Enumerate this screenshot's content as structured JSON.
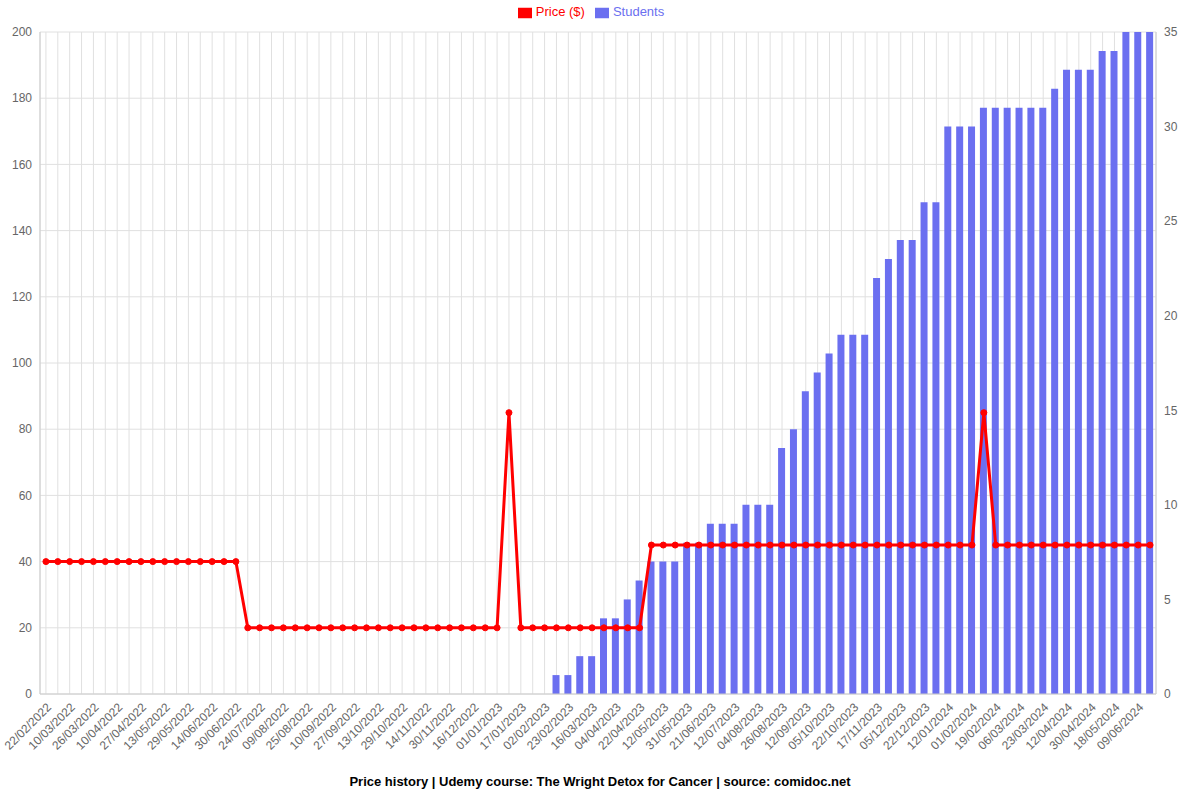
{
  "chart_data": {
    "type": "line",
    "title": "Price history | Udemy course: The Wright Detox for Cancer | source: comidoc.net",
    "categories": [
      "22/02/2022",
      null,
      "10/03/2022",
      null,
      "26/03/2022",
      null,
      "10/04/2022",
      null,
      "27/04/2022",
      null,
      "13/05/2022",
      null,
      "29/05/2022",
      null,
      "14/06/2022",
      null,
      "30/06/2022",
      null,
      "24/07/2022",
      null,
      "09/08/2022",
      null,
      "25/08/2022",
      null,
      "10/09/2022",
      null,
      "27/09/2022",
      null,
      "13/10/2022",
      null,
      "29/10/2022",
      null,
      "14/11/2022",
      null,
      "30/11/2022",
      null,
      "16/12/2022",
      null,
      "01/01/2023",
      null,
      "17/01/2023",
      null,
      "02/02/2023",
      null,
      "23/02/2023",
      null,
      "16/03/2023",
      null,
      "04/04/2023",
      null,
      "22/04/2023",
      null,
      "12/05/2023",
      null,
      "31/05/2023",
      null,
      "21/06/2023",
      null,
      "12/07/2023",
      null,
      "04/08/2023",
      null,
      "26/08/2023",
      null,
      "12/09/2023",
      null,
      "05/10/2023",
      null,
      "22/10/2023",
      null,
      "17/11/2023",
      null,
      "05/12/2023",
      null,
      "22/12/2023",
      null,
      "12/01/2024",
      null,
      "01/02/2024",
      null,
      "19/02/2024",
      null,
      "06/03/2024",
      null,
      "23/03/2024",
      null,
      "12/04/2024",
      null,
      "30/04/2024",
      null,
      "18/05/2024",
      null,
      "09/06/2024",
      null
    ],
    "series": [
      {
        "name": "Price ($)",
        "type": "line",
        "color": "#ff0000",
        "marker": "circle",
        "values": [
          40,
          40,
          40,
          40,
          40,
          40,
          40,
          40,
          40,
          40,
          40,
          40,
          40,
          40,
          40,
          40,
          40,
          20,
          20,
          20,
          20,
          20,
          20,
          20,
          20,
          20,
          20,
          20,
          20,
          20,
          20,
          20,
          20,
          20,
          20,
          20,
          20,
          20,
          20,
          85,
          20,
          20,
          20,
          20,
          20,
          20,
          20,
          20,
          20,
          20,
          20,
          45,
          45,
          45,
          45,
          45,
          45,
          45,
          45,
          45,
          45,
          45,
          45,
          45,
          45,
          45,
          45,
          45,
          45,
          45,
          45,
          45,
          45,
          45,
          45,
          45,
          45,
          45,
          45,
          85,
          45,
          45,
          45,
          45,
          45,
          45,
          45,
          45,
          45,
          45,
          45,
          45,
          45,
          45
        ]
      },
      {
        "name": "Students",
        "type": "bar",
        "color": "#6b6ff0",
        "axis": "y2",
        "values": [
          null,
          null,
          null,
          null,
          null,
          null,
          null,
          null,
          null,
          null,
          null,
          null,
          null,
          null,
          null,
          null,
          null,
          null,
          null,
          null,
          null,
          null,
          null,
          null,
          null,
          null,
          null,
          null,
          null,
          null,
          null,
          null,
          null,
          null,
          null,
          null,
          null,
          null,
          null,
          null,
          null,
          null,
          null,
          1,
          1,
          2,
          2,
          4,
          4,
          5,
          6,
          7,
          7,
          7,
          8,
          8,
          9,
          9,
          9,
          10,
          10,
          10,
          13,
          14,
          16,
          17,
          18,
          19,
          19,
          19,
          22,
          23,
          24,
          24,
          26,
          26,
          30,
          30,
          30,
          31,
          31,
          31,
          31,
          31,
          31,
          32,
          33,
          33,
          33,
          34,
          34,
          35,
          35,
          35
        ]
      }
    ],
    "ylim": [
      0,
      200
    ],
    "yticks": [
      0,
      20,
      40,
      60,
      80,
      100,
      120,
      140,
      160,
      180,
      200
    ],
    "y2lim": [
      0,
      35
    ],
    "y2ticks": [
      0,
      5,
      10,
      15,
      20,
      25,
      30,
      35
    ],
    "grid": true,
    "legend": "top"
  }
}
